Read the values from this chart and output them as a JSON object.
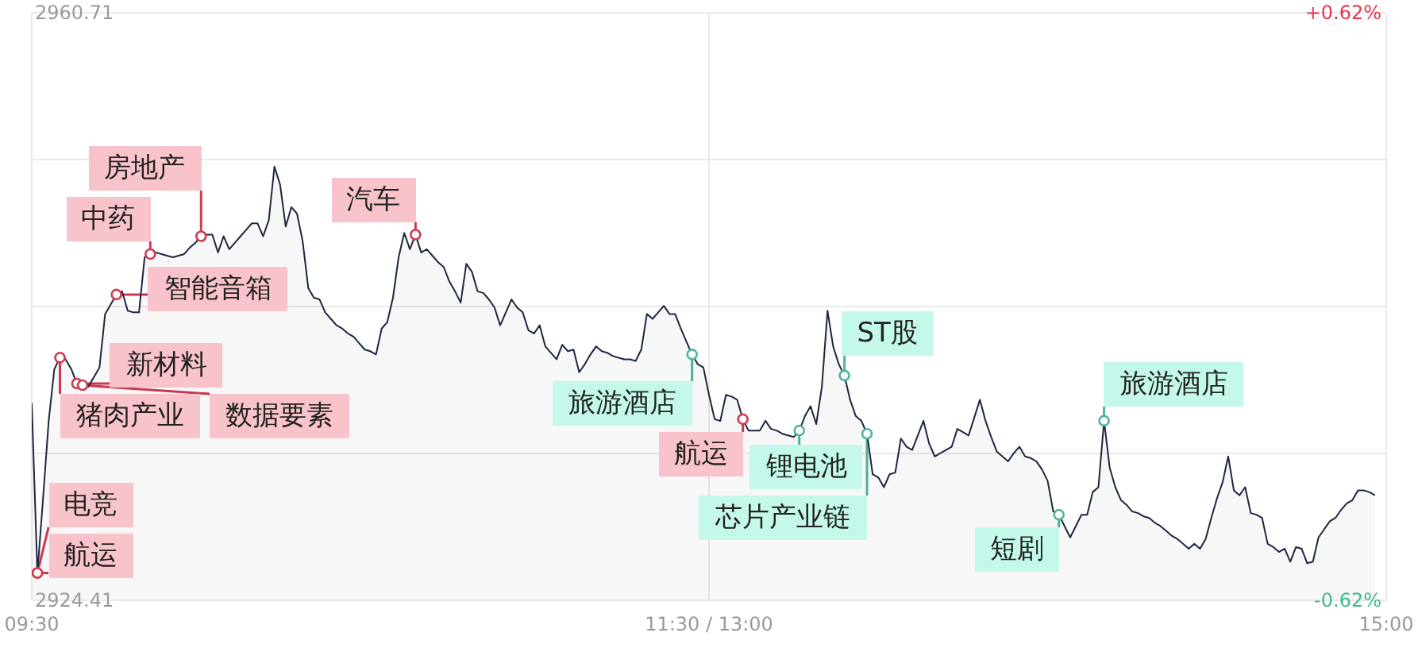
{
  "chart_data": {
    "type": "area",
    "categories": [
      "09:30",
      null,
      null,
      null,
      null,
      null,
      null,
      null,
      null,
      null,
      null,
      null,
      null,
      null,
      null,
      null,
      null,
      null,
      null,
      null,
      null,
      null,
      null,
      null,
      null,
      null,
      null,
      null,
      null,
      null,
      null,
      null,
      null,
      null,
      null,
      null,
      null,
      null,
      null,
      null,
      null,
      null,
      null,
      null,
      null,
      null,
      null,
      null,
      null,
      null,
      null,
      null,
      null,
      null,
      null,
      null,
      null,
      null,
      null,
      null,
      null,
      null,
      null,
      null,
      null,
      null,
      null,
      null,
      null,
      null,
      null,
      null,
      null,
      null,
      null,
      null,
      null,
      null,
      null,
      null,
      null,
      null,
      null,
      null,
      null,
      null,
      null,
      null,
      null,
      null,
      null,
      null,
      null,
      null,
      null,
      null,
      null,
      null,
      null,
      null,
      null,
      null,
      null,
      null,
      null,
      null,
      null,
      null,
      null,
      null,
      null,
      null,
      null,
      null,
      null,
      null,
      null,
      null,
      null,
      null,
      "11:30 / 13:00",
      null,
      null,
      null,
      null,
      null,
      null,
      null,
      null,
      null,
      null,
      null,
      null,
      null,
      null,
      null,
      null,
      null,
      null,
      null,
      null,
      null,
      null,
      null,
      null,
      null,
      null,
      null,
      null,
      null,
      null,
      null,
      null,
      null,
      null,
      null,
      null,
      null,
      null,
      null,
      null,
      null,
      null,
      null,
      null,
      null,
      null,
      null,
      null,
      null,
      null,
      null,
      null,
      null,
      null,
      null,
      null,
      null,
      null,
      null,
      null,
      null,
      null,
      null,
      null,
      null,
      null,
      null,
      null,
      null,
      null,
      null,
      null,
      null,
      null,
      null,
      null,
      null,
      null,
      null,
      null,
      null,
      null,
      null,
      null,
      null,
      null,
      null,
      null,
      null,
      null,
      null,
      null,
      null,
      null,
      null,
      null,
      null,
      null,
      null,
      null,
      null,
      null,
      null,
      null,
      null,
      null,
      null,
      null,
      null,
      null,
      null,
      null,
      null,
      null,
      null,
      null,
      null,
      null,
      null,
      "15:00"
    ],
    "series": [
      {
        "color": "#1e2640",
        "values": [
          2936.6,
          2926.1,
          2930.7,
          2935.5,
          2938.7,
          2939.4,
          2939.3,
          2938.7,
          2937.8,
          2937.7,
          2937.6,
          2938.2,
          2938.8,
          2942.1,
          2942.7,
          2943.3,
          2943.5,
          2942.3,
          2942.2,
          2942.2,
          2945.6,
          2945.8,
          2945.9,
          2945.8,
          2945.7,
          2945.6,
          2945.7,
          2945.8,
          2946.2,
          2946.5,
          2946.9,
          2947.0,
          2947.0,
          2945.9,
          2946.9,
          2946.1,
          2946.5,
          2946.9,
          2947.3,
          2947.7,
          2947.7,
          2946.9,
          2947.9,
          2951.2,
          2950.1,
          2947.5,
          2948.7,
          2948.3,
          2946.6,
          2943.7,
          2943.1,
          2943.0,
          2942.2,
          2941.8,
          2941.4,
          2941.2,
          2940.9,
          2940.7,
          2940.3,
          2939.9,
          2939.8,
          2939.6,
          2941.2,
          2941.6,
          2943.1,
          2945.6,
          2947.1,
          2946.1,
          2947.0,
          2945.9,
          2946.1,
          2945.7,
          2945.3,
          2945.0,
          2944.1,
          2943.5,
          2942.8,
          2945.2,
          2944.7,
          2943.5,
          2943.4,
          2943.0,
          2942.5,
          2941.4,
          2942.2,
          2943.0,
          2942.5,
          2942.2,
          2941.1,
          2940.9,
          2941.4,
          2940.1,
          2939.7,
          2939.3,
          2940.2,
          2939.8,
          2939.9,
          2938.5,
          2939.0,
          2939.6,
          2940.1,
          2939.8,
          2939.7,
          2939.5,
          2939.4,
          2939.3,
          2939.3,
          2939.2,
          2939.9,
          2942.1,
          2941.8,
          2942.2,
          2942.6,
          2942.1,
          2942.1,
          2941.2,
          2940.4,
          2939.6,
          2939.0,
          2938.8,
          2937.1,
          2935.6,
          2935.5,
          2937.1,
          2937.0,
          2936.8,
          2935.6,
          2934.9,
          2934.9,
          2934.9,
          2935.5,
          2935.0,
          2934.9,
          2934.7,
          2934.6,
          2934.5,
          2934.9,
          2935.8,
          2936.4,
          2935.3,
          2937.6,
          2942.3,
          2940.1,
          2939.0,
          2938.3,
          2936.8,
          2935.8,
          2935.5,
          2934.7,
          2932.2,
          2932.0,
          2931.4,
          2932.2,
          2932.3,
          2934.4,
          2933.9,
          2933.7,
          2934.6,
          2935.5,
          2934.1,
          2933.3,
          2933.5,
          2933.7,
          2933.9,
          2935.0,
          2934.8,
          2934.6,
          2935.7,
          2936.8,
          2935.5,
          2934.5,
          2933.6,
          2933.3,
          2933.0,
          2933.5,
          2933.9,
          2933.3,
          2933.2,
          2933.0,
          2932.5,
          2931.8,
          2929.9,
          2929.7,
          2929.0,
          2928.3,
          2929.0,
          2929.7,
          2929.7,
          2931.1,
          2931.4,
          2935.5,
          2932.6,
          2931.4,
          2930.6,
          2930.3,
          2929.9,
          2929.8,
          2929.6,
          2929.5,
          2929.2,
          2929.0,
          2928.7,
          2928.4,
          2928.2,
          2927.9,
          2927.6,
          2927.9,
          2927.6,
          2928.2,
          2929.5,
          2930.7,
          2931.7,
          2933.3,
          2931.2,
          2930.9,
          2931.4,
          2929.8,
          2929.7,
          2929.5,
          2927.9,
          2927.7,
          2927.4,
          2927.6,
          2926.8,
          2927.7,
          2927.6,
          2926.7,
          2926.8,
          2928.3,
          2928.8,
          2929.3,
          2929.5,
          2930.0,
          2930.4,
          2930.6,
          2931.2,
          2931.2,
          2931.1,
          2930.9,
          null,
          null
        ]
      },
      {
        "type": "scatter",
        "color": "#d03a4f",
        "marker": "circle",
        "values": [
          null,
          2926.1,
          null,
          null,
          null,
          2939.4,
          null,
          null,
          2937.8,
          2937.7,
          null,
          null,
          null,
          null,
          null,
          2943.3,
          null,
          null,
          null,
          null,
          null,
          2945.8,
          null,
          null,
          null,
          null,
          null,
          null,
          null,
          null,
          2946.9,
          null,
          null,
          null,
          null,
          null,
          null,
          null,
          null,
          null,
          null,
          null,
          null,
          null,
          null,
          null,
          null,
          null,
          null,
          null,
          null,
          null,
          null,
          null,
          null,
          null,
          null,
          null,
          null,
          null,
          null,
          null,
          null,
          null,
          null,
          null,
          null,
          null,
          2947.0,
          null,
          null,
          null,
          null,
          null,
          null,
          null,
          null,
          null,
          null,
          null,
          null,
          null,
          null,
          null,
          null,
          null,
          null,
          null,
          null,
          null,
          null,
          null,
          null,
          null,
          null,
          null,
          null,
          null,
          null,
          null,
          null,
          null,
          null,
          null,
          null,
          null,
          null,
          null,
          null,
          null,
          null,
          null,
          null,
          null,
          null,
          null,
          null,
          null,
          null,
          null,
          null,
          null,
          null,
          null,
          null,
          null,
          2935.6,
          null,
          null,
          null,
          null,
          null,
          null,
          null,
          null,
          null,
          null,
          null,
          null,
          null,
          null,
          null,
          null,
          null,
          null,
          null,
          null,
          null,
          null,
          null,
          null,
          null,
          null,
          null,
          null,
          null,
          null,
          null,
          null,
          null,
          null,
          null,
          null,
          null,
          null,
          null,
          null,
          null,
          null,
          null,
          null,
          null,
          null,
          null,
          null,
          null,
          null,
          null,
          null,
          null,
          null,
          null,
          null,
          null,
          null,
          null,
          null,
          null,
          null,
          null,
          null,
          null,
          null,
          null,
          null,
          null,
          null,
          null,
          null,
          null,
          null,
          null,
          null,
          null,
          null,
          null,
          null,
          null,
          null,
          null,
          null,
          null,
          null,
          null,
          null,
          null,
          null,
          null,
          null,
          null,
          null,
          null,
          null,
          null,
          null,
          null,
          null,
          null,
          null,
          null,
          null,
          null,
          null,
          null,
          null,
          null,
          null,
          null,
          null,
          null,
          null
        ],
        "value_labels": [
          null,
          "航运",
          null,
          null,
          null,
          "猪肉产业",
          null,
          null,
          "新材料",
          "数据要素",
          null,
          null,
          null,
          null,
          null,
          "智能音箱",
          null,
          null,
          null,
          null,
          null,
          "中药",
          null,
          null,
          null,
          null,
          null,
          null,
          null,
          null,
          "房地产",
          null,
          null,
          null,
          null,
          null,
          null,
          null,
          null,
          null,
          null,
          null,
          null,
          null,
          null,
          null,
          null,
          null,
          null,
          null,
          null,
          null,
          null,
          null,
          null,
          null,
          null,
          null,
          null,
          null,
          null,
          null,
          null,
          null,
          null,
          null,
          null,
          null,
          "汽车",
          null,
          null,
          null,
          null,
          null,
          null,
          null,
          null,
          null,
          null,
          null,
          null,
          null,
          null,
          null,
          null,
          null,
          null,
          null,
          null,
          null,
          null,
          null,
          null,
          null,
          null,
          null,
          null,
          null,
          null,
          null,
          null,
          null,
          null,
          null,
          null,
          null,
          null,
          null,
          null,
          null,
          null,
          null,
          null,
          null,
          null,
          null,
          null,
          null,
          null,
          null,
          null,
          null,
          null,
          null,
          null,
          null,
          "航运",
          null,
          null,
          null,
          null,
          null,
          null,
          null,
          null,
          null,
          null,
          null,
          null,
          null,
          null,
          null,
          null,
          null,
          null,
          null,
          null,
          null,
          null,
          null,
          null,
          null,
          null,
          null,
          null,
          null,
          null,
          null,
          null,
          null,
          null,
          null,
          null,
          null,
          null,
          null,
          null,
          null,
          null,
          null,
          null,
          null,
          null,
          null,
          null,
          null,
          null,
          null,
          null,
          null,
          null,
          null,
          null,
          null,
          null,
          null,
          null,
          null,
          null,
          null,
          null,
          null,
          null,
          null,
          null,
          null,
          null,
          null,
          null,
          null,
          null,
          null,
          null,
          null,
          null,
          null,
          null,
          null,
          null,
          null,
          null,
          null,
          null,
          null,
          null,
          null,
          null,
          null,
          null,
          null,
          null,
          null,
          null,
          null,
          null,
          null,
          null,
          null,
          null,
          null,
          null,
          null,
          null,
          null,
          null,
          null,
          null,
          null,
          null,
          null,
          null
        ]
      },
      {
        "type": "scatter",
        "color": "#d03a4f",
        "marker": "circle",
        "values": [
          null,
          2926.1,
          null,
          null,
          null,
          null,
          null,
          null,
          null,
          null,
          null,
          null,
          null,
          null,
          null,
          null,
          null,
          null,
          null,
          null,
          null,
          null,
          null,
          null,
          null,
          null,
          null,
          null,
          null,
          null,
          null,
          null,
          null,
          null,
          null,
          null,
          null,
          null,
          null,
          null,
          null,
          null,
          null,
          null,
          null,
          null,
          null,
          null,
          null,
          null,
          null,
          null,
          null,
          null,
          null,
          null,
          null,
          null,
          null,
          null,
          null,
          null,
          null,
          null,
          null,
          null,
          null,
          null,
          null,
          null,
          null,
          null,
          null,
          null,
          null,
          null,
          null,
          null,
          null,
          null,
          null,
          null,
          null,
          null,
          null,
          null,
          null,
          null,
          null,
          null,
          null,
          null,
          null,
          null,
          null,
          null,
          null,
          null,
          null,
          null,
          null,
          null,
          null,
          null,
          null,
          null,
          null,
          null,
          null,
          null,
          null,
          null,
          null,
          null,
          null,
          null,
          null,
          null,
          null,
          null,
          null,
          null,
          null,
          null,
          null,
          null,
          null,
          null,
          null,
          null,
          null,
          null,
          null,
          null,
          null,
          null,
          null,
          null,
          null,
          null,
          null,
          null,
          null,
          null,
          null,
          null,
          null,
          null,
          null,
          null,
          null,
          null,
          null,
          null,
          null,
          null,
          null,
          null,
          null,
          null,
          null,
          null,
          null,
          null,
          null,
          null,
          null,
          null,
          null,
          null,
          null,
          null,
          null,
          null,
          null,
          null,
          null,
          null,
          null,
          null,
          null,
          null,
          null,
          null,
          null,
          null,
          null,
          null,
          null,
          null,
          null,
          null,
          null,
          null,
          null,
          null,
          null,
          null,
          null,
          null,
          null,
          null,
          null,
          null,
          null,
          null,
          null,
          null,
          null,
          null,
          null,
          null,
          null,
          null,
          null,
          null,
          null,
          null,
          null,
          null,
          null,
          null,
          null,
          null,
          null,
          null,
          null,
          null,
          null,
          null,
          null,
          null,
          null,
          null,
          null,
          null,
          null,
          null,
          null,
          null,
          null
        ],
        "value_labels": [
          null,
          "电竞",
          null,
          null,
          null,
          null,
          null,
          null,
          null,
          null,
          null,
          null,
          null,
          null,
          null,
          null,
          null,
          null,
          null,
          null,
          null,
          null,
          null,
          null,
          null,
          null,
          null,
          null,
          null,
          null,
          null,
          null,
          null,
          null,
          null,
          null,
          null,
          null,
          null,
          null,
          null,
          null,
          null,
          null,
          null,
          null,
          null,
          null,
          null,
          null,
          null,
          null,
          null,
          null,
          null,
          null,
          null,
          null,
          null,
          null,
          null,
          null,
          null,
          null,
          null,
          null,
          null,
          null,
          null,
          null,
          null,
          null,
          null,
          null,
          null,
          null,
          null,
          null,
          null,
          null,
          null,
          null,
          null,
          null,
          null,
          null,
          null,
          null,
          null,
          null,
          null,
          null,
          null,
          null,
          null,
          null,
          null,
          null,
          null,
          null,
          null,
          null,
          null,
          null,
          null,
          null,
          null,
          null,
          null,
          null,
          null,
          null,
          null,
          null,
          null,
          null,
          null,
          null,
          null,
          null,
          null,
          null,
          null,
          null,
          null,
          null,
          null,
          null,
          null,
          null,
          null,
          null,
          null,
          null,
          null,
          null,
          null,
          null,
          null,
          null,
          null,
          null,
          null,
          null,
          null,
          null,
          null,
          null,
          null,
          null,
          null,
          null,
          null,
          null,
          null,
          null,
          null,
          null,
          null,
          null,
          null,
          null,
          null,
          null,
          null,
          null,
          null,
          null,
          null,
          null,
          null,
          null,
          null,
          null,
          null,
          null,
          null,
          null,
          null,
          null,
          null,
          null,
          null,
          null,
          null,
          null,
          null,
          null,
          null,
          null,
          null,
          null,
          null,
          null,
          null,
          null,
          null,
          null,
          null,
          null,
          null,
          null,
          null,
          null,
          null,
          null,
          null,
          null,
          null,
          null,
          null,
          null,
          null,
          null,
          null,
          null,
          null,
          null,
          null,
          null,
          null,
          null,
          null,
          null,
          null,
          null,
          null,
          null,
          null,
          null,
          null,
          null,
          null,
          null,
          null,
          null,
          null,
          null,
          null,
          null,
          null
        ]
      },
      {
        "type": "scatter",
        "color": "#4fb59b",
        "marker": "circle",
        "values": [
          null,
          null,
          null,
          null,
          null,
          null,
          null,
          null,
          null,
          null,
          null,
          null,
          null,
          null,
          null,
          null,
          null,
          null,
          null,
          null,
          null,
          null,
          null,
          null,
          null,
          null,
          null,
          null,
          null,
          null,
          null,
          null,
          null,
          null,
          null,
          null,
          null,
          null,
          null,
          null,
          null,
          null,
          null,
          null,
          null,
          null,
          null,
          null,
          null,
          null,
          null,
          null,
          null,
          null,
          null,
          null,
          null,
          null,
          null,
          null,
          null,
          null,
          null,
          null,
          null,
          null,
          null,
          null,
          null,
          null,
          null,
          null,
          null,
          null,
          null,
          null,
          null,
          null,
          null,
          null,
          null,
          null,
          null,
          null,
          null,
          null,
          null,
          null,
          null,
          null,
          null,
          null,
          null,
          null,
          null,
          null,
          null,
          null,
          null,
          null,
          null,
          null,
          null,
          null,
          null,
          null,
          null,
          null,
          null,
          null,
          null,
          null,
          null,
          null,
          null,
          null,
          null,
          2939.6,
          null,
          null,
          null,
          null,
          null,
          null,
          null,
          null,
          null,
          null,
          null,
          null,
          null,
          null,
          null,
          null,
          null,
          null,
          2934.9,
          null,
          null,
          null,
          null,
          null,
          null,
          null,
          2938.3,
          null,
          null,
          null,
          2934.7,
          null,
          null,
          null,
          null,
          null,
          null,
          null,
          null,
          null,
          null,
          null,
          null,
          null,
          null,
          null,
          null,
          null,
          null,
          null,
          null,
          null,
          null,
          null,
          null,
          null,
          null,
          null,
          null,
          null,
          null,
          null,
          null,
          null,
          2929.7,
          null,
          null,
          null,
          null,
          null,
          null,
          null,
          2935.5,
          null,
          null,
          null,
          null,
          null,
          null,
          null,
          null,
          null,
          null,
          null,
          null,
          null,
          null,
          null,
          null,
          null,
          null,
          null,
          null,
          null,
          null,
          null,
          null,
          null,
          null,
          null,
          null,
          null,
          null,
          null,
          null,
          null,
          null,
          null,
          null,
          null,
          null,
          null,
          null,
          null,
          null,
          null,
          null,
          null,
          null,
          null,
          null,
          null,
          null
        ],
        "value_labels": [
          null,
          null,
          null,
          null,
          null,
          null,
          null,
          null,
          null,
          null,
          null,
          null,
          null,
          null,
          null,
          null,
          null,
          null,
          null,
          null,
          null,
          null,
          null,
          null,
          null,
          null,
          null,
          null,
          null,
          null,
          null,
          null,
          null,
          null,
          null,
          null,
          null,
          null,
          null,
          null,
          null,
          null,
          null,
          null,
          null,
          null,
          null,
          null,
          null,
          null,
          null,
          null,
          null,
          null,
          null,
          null,
          null,
          null,
          null,
          null,
          null,
          null,
          null,
          null,
          null,
          null,
          null,
          null,
          null,
          null,
          null,
          null,
          null,
          null,
          null,
          null,
          null,
          null,
          null,
          null,
          null,
          null,
          null,
          null,
          null,
          null,
          null,
          null,
          null,
          null,
          null,
          null,
          null,
          null,
          null,
          null,
          null,
          null,
          null,
          null,
          null,
          null,
          null,
          null,
          null,
          null,
          null,
          null,
          null,
          null,
          null,
          null,
          null,
          null,
          null,
          null,
          null,
          "旅游酒店",
          null,
          null,
          null,
          null,
          null,
          null,
          null,
          null,
          null,
          null,
          null,
          null,
          null,
          null,
          null,
          null,
          null,
          null,
          "锂电池",
          null,
          null,
          null,
          null,
          null,
          null,
          null,
          "ST股",
          null,
          null,
          null,
          "芯片产业链",
          null,
          null,
          null,
          null,
          null,
          null,
          null,
          null,
          null,
          null,
          null,
          null,
          null,
          null,
          null,
          null,
          null,
          null,
          null,
          null,
          null,
          null,
          null,
          null,
          null,
          null,
          null,
          null,
          null,
          null,
          null,
          null,
          null,
          "短剧",
          null,
          null,
          null,
          null,
          null,
          null,
          null,
          "旅游酒店",
          null,
          null,
          null,
          null,
          null,
          null,
          null,
          null,
          null,
          null,
          null,
          null,
          null,
          null,
          null,
          null,
          null,
          null,
          null,
          null,
          null,
          null,
          null,
          null,
          null,
          null,
          null,
          null,
          null,
          null,
          null,
          null,
          null,
          null,
          null,
          null,
          null,
          null,
          null,
          null,
          null,
          null,
          null,
          null,
          null,
          null,
          null,
          null,
          null,
          null
        ]
      }
    ],
    "ylim": [
      2924.41,
      2960.71
    ],
    "yticks": [
      2924.41,
      {
        "value": 2933.485,
        "label": null
      },
      {
        "value": 2942.56,
        "label": null
      },
      {
        "value": 2951.635,
        "label": null
      },
      2960.71
    ],
    "y2lim": [
      -0.62,
      0.62
    ],
    "y2ticks": [
      {
        "value": -0.62,
        "label": "-0.62%"
      },
      {
        "value": 0.62,
        "label": "+0.62%"
      }
    ],
    "grid": true
  }
}
